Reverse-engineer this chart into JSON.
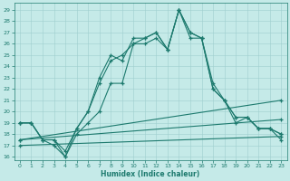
{
  "xlabel": "Humidex (Indice chaleur)",
  "bg_color": "#c5eae8",
  "line_color": "#1d7a6e",
  "grid_color": "#9ecece",
  "xlim": [
    -0.5,
    23.5
  ],
  "ylim": [
    15.7,
    29.6
  ],
  "yticks": [
    16,
    17,
    18,
    19,
    20,
    21,
    22,
    23,
    24,
    25,
    26,
    27,
    28,
    29
  ],
  "xticks": [
    0,
    1,
    2,
    3,
    4,
    5,
    6,
    7,
    8,
    9,
    10,
    11,
    12,
    13,
    14,
    15,
    16,
    17,
    18,
    19,
    20,
    21,
    22,
    23
  ],
  "marker_lines": [
    {
      "x": [
        0,
        1,
        2,
        3,
        4,
        5,
        6,
        7,
        8,
        9,
        10,
        11,
        12,
        13,
        14,
        15,
        16,
        17,
        18,
        19,
        20,
        21,
        22,
        23
      ],
      "y": [
        19.0,
        19.0,
        17.5,
        17.0,
        16.0,
        18.5,
        20.0,
        23.0,
        25.0,
        24.5,
        26.5,
        26.5,
        27.0,
        25.5,
        29.0,
        27.0,
        26.5,
        22.0,
        21.0,
        19.5,
        19.5,
        18.5,
        18.5,
        18.0
      ]
    },
    {
      "x": [
        0,
        1,
        2,
        3,
        4,
        5,
        6,
        7,
        8,
        9,
        10,
        11,
        12,
        13,
        14,
        15,
        16,
        17,
        18,
        19,
        20,
        21,
        22,
        23
      ],
      "y": [
        19.0,
        19.0,
        17.5,
        17.5,
        16.5,
        18.5,
        20.0,
        22.5,
        24.5,
        25.0,
        26.0,
        26.5,
        27.0,
        25.5,
        29.0,
        27.0,
        26.5,
        22.5,
        21.0,
        19.5,
        19.5,
        18.5,
        18.5,
        18.0
      ]
    },
    {
      "x": [
        0,
        1,
        2,
        3,
        4,
        5,
        6,
        7,
        8,
        9,
        10,
        11,
        12,
        13,
        14,
        15,
        16,
        17,
        18,
        19,
        20,
        21,
        22,
        23
      ],
      "y": [
        19.0,
        19.0,
        17.5,
        17.5,
        16.0,
        18.0,
        19.0,
        20.0,
        22.5,
        22.5,
        26.0,
        26.0,
        26.5,
        25.5,
        29.0,
        26.5,
        26.5,
        22.0,
        21.0,
        19.0,
        19.5,
        18.5,
        18.5,
        17.5
      ]
    }
  ],
  "flat_lines": [
    {
      "x": [
        0,
        23
      ],
      "y": [
        17.0,
        17.8
      ]
    },
    {
      "x": [
        0,
        23
      ],
      "y": [
        17.5,
        19.3
      ]
    },
    {
      "x": [
        0,
        23
      ],
      "y": [
        17.5,
        21.0
      ]
    }
  ]
}
